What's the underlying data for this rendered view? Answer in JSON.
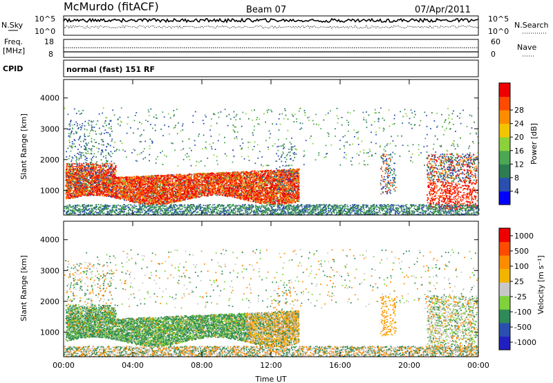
{
  "header": {
    "station": "McMurdo (fitACF)",
    "beam": "Beam 07",
    "date": "07/Apr/2011"
  },
  "top_panels": {
    "nsky_label": "N.Sky",
    "nsearch_label": "N.Search",
    "freq_label_1": "Freq.",
    "freq_label_2": "[MHz]",
    "nave_label": "Nave",
    "cpid_label": "CPID",
    "cpid_value": "normal (fast) 151 RF",
    "noise_ticks_left": [
      "10^5",
      "10^0"
    ],
    "noise_ticks_right": [
      "10^5",
      "10^0"
    ],
    "freq_ticks": [
      "18",
      "8"
    ],
    "nave_ticks": [
      "60",
      "0"
    ]
  },
  "colors": {
    "power_scale": [
      "#0000ff",
      "#2a4fb0",
      "#2e7d52",
      "#4aa852",
      "#8bd23a",
      "#f2c500",
      "#ff8c00",
      "#ff4b00",
      "#ee0000"
    ],
    "velocity_scale": [
      "#ee0000",
      "#ff4b00",
      "#ff8c00",
      "#f2b400",
      "#c8c8c8",
      "#7fd23a",
      "#2e8b57",
      "#2a4fb0",
      "#2020c0"
    ]
  },
  "chart_data": [
    {
      "type": "heatmap",
      "title": "Power",
      "xlabel": "",
      "ylabel": "Slant Range [km]",
      "x_ticks": [
        "00:00",
        "04:00",
        "08:00",
        "12:00",
        "16:00",
        "20:00",
        "00:00"
      ],
      "y_ticks": [
        1000,
        2000,
        3000,
        4000
      ],
      "ylim": [
        200,
        4600
      ],
      "colorbar": {
        "label": "Power [dB]",
        "ticks": [
          "4",
          "8",
          "12",
          "16",
          "20",
          "24",
          "28"
        ],
        "range": [
          0,
          30
        ]
      }
    },
    {
      "type": "heatmap",
      "title": "Velocity",
      "xlabel": "Time UT",
      "ylabel": "Slant Range [km]",
      "x_ticks": [
        "00:00",
        "04:00",
        "08:00",
        "12:00",
        "16:00",
        "20:00",
        "00:00"
      ],
      "y_ticks": [
        1000,
        2000,
        3000,
        4000
      ],
      "ylim": [
        200,
        4600
      ],
      "colorbar": {
        "label": "Velocity [m s⁻¹]",
        "ticks": [
          "1000",
          "500",
          "100",
          "25",
          "-25",
          "-100",
          "-500",
          "-1000"
        ]
      }
    }
  ]
}
